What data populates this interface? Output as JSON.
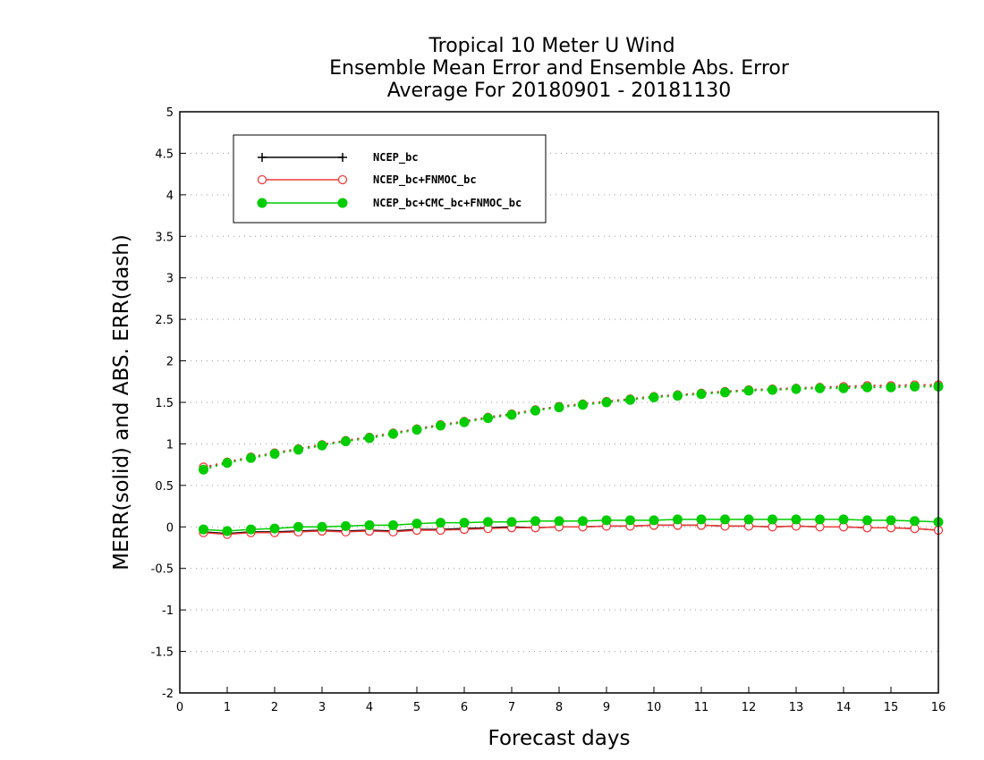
{
  "chart_data": {
    "type": "line",
    "title_lines": [
      "Tropical 10 Meter U Wind",
      "Ensemble Mean Error and Ensemble Abs. Error",
      "Average For 20180901 - 20181130"
    ],
    "xlabel": "Forecast days",
    "ylabel": "MERR(solid) and ABS. ERR(dash)",
    "xlim": [
      0,
      16
    ],
    "ylim": [
      -2,
      5
    ],
    "x_ticks": [
      0,
      1,
      2,
      3,
      4,
      5,
      6,
      7,
      8,
      9,
      10,
      11,
      12,
      13,
      14,
      15,
      16
    ],
    "y_ticks": [
      -2,
      -1.5,
      -1,
      -0.5,
      0,
      0.5,
      1,
      1.5,
      2,
      2.5,
      3,
      3.5,
      4,
      4.5,
      5
    ],
    "grid": "horizontal dotted",
    "legend_placement": "top-left",
    "x": [
      0.5,
      1,
      1.5,
      2,
      2.5,
      3,
      3.5,
      4,
      4.5,
      5,
      5.5,
      6,
      6.5,
      7,
      7.5,
      8,
      8.5,
      9,
      9.5,
      10,
      10.5,
      11,
      11.5,
      12,
      12.5,
      13,
      13.5,
      14,
      14.5,
      15,
      15.5,
      16
    ],
    "series": [
      {
        "name": "NCEP_bc",
        "color": "#000000",
        "marker": "plus",
        "merr": [
          -0.06,
          -0.08,
          -0.06,
          -0.06,
          -0.05,
          -0.04,
          -0.05,
          -0.04,
          -0.05,
          -0.03,
          -0.03,
          -0.02,
          -0.01,
          0.0,
          -0.01,
          0.0,
          0.0,
          0.01,
          0.01,
          0.02,
          0.02,
          0.02,
          0.01,
          0.01,
          0.0,
          0.01,
          0.0,
          0.0,
          -0.01,
          -0.01,
          -0.02,
          -0.04
        ],
        "abs_err": [
          0.71,
          0.78,
          0.84,
          0.89,
          0.94,
          0.99,
          1.04,
          1.08,
          1.13,
          1.18,
          1.23,
          1.27,
          1.32,
          1.36,
          1.41,
          1.45,
          1.48,
          1.51,
          1.54,
          1.57,
          1.59,
          1.61,
          1.63,
          1.65,
          1.66,
          1.67,
          1.68,
          1.69,
          1.7,
          1.7,
          1.71,
          1.71
        ]
      },
      {
        "name": "NCEP_bc+FNMOC_bc",
        "color": "#f03c3c",
        "marker": "open-circle",
        "merr": [
          -0.07,
          -0.09,
          -0.07,
          -0.07,
          -0.06,
          -0.05,
          -0.06,
          -0.05,
          -0.06,
          -0.04,
          -0.04,
          -0.03,
          -0.02,
          -0.01,
          -0.01,
          0.0,
          0.0,
          0.01,
          0.01,
          0.02,
          0.02,
          0.02,
          0.01,
          0.01,
          0.0,
          0.01,
          0.0,
          0.0,
          -0.01,
          -0.01,
          -0.02,
          -0.04
        ],
        "abs_err": [
          0.72,
          0.78,
          0.84,
          0.89,
          0.94,
          0.99,
          1.04,
          1.08,
          1.13,
          1.18,
          1.23,
          1.27,
          1.32,
          1.36,
          1.41,
          1.45,
          1.48,
          1.51,
          1.54,
          1.57,
          1.59,
          1.61,
          1.63,
          1.65,
          1.66,
          1.67,
          1.68,
          1.69,
          1.7,
          1.7,
          1.71,
          1.71
        ]
      },
      {
        "name": "NCEP_bc+CMC_bc+FNMOC_bc",
        "color": "#00cc00",
        "marker": "filled-circle",
        "merr": [
          -0.03,
          -0.05,
          -0.03,
          -0.02,
          0.0,
          0.0,
          0.01,
          0.02,
          0.02,
          0.04,
          0.05,
          0.05,
          0.06,
          0.06,
          0.07,
          0.07,
          0.07,
          0.08,
          0.08,
          0.08,
          0.09,
          0.09,
          0.09,
          0.09,
          0.09,
          0.09,
          0.09,
          0.09,
          0.08,
          0.08,
          0.07,
          0.06
        ],
        "abs_err": [
          0.69,
          0.77,
          0.83,
          0.88,
          0.93,
          0.98,
          1.03,
          1.07,
          1.12,
          1.17,
          1.22,
          1.26,
          1.31,
          1.35,
          1.4,
          1.44,
          1.47,
          1.5,
          1.53,
          1.56,
          1.58,
          1.6,
          1.62,
          1.64,
          1.65,
          1.66,
          1.67,
          1.67,
          1.68,
          1.68,
          1.69,
          1.69
        ]
      }
    ]
  }
}
